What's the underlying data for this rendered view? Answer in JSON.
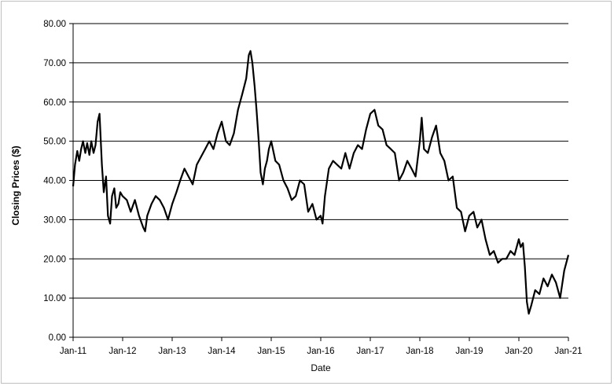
{
  "chart_data": {
    "type": "line",
    "title": "",
    "xlabel": "Date",
    "ylabel": "Closing Prices ($)",
    "ylim": [
      0,
      80
    ],
    "yticks": [
      "0.00",
      "10.00",
      "20.00",
      "30.00",
      "40.00",
      "50.00",
      "60.00",
      "70.00",
      "80.00"
    ],
    "xticks": [
      "Jan-11",
      "Jan-12",
      "Jan-13",
      "Jan-14",
      "Jan-15",
      "Jan-16",
      "Jan-17",
      "Jan-18",
      "Jan-19",
      "Jan-20",
      "Jan-21"
    ],
    "xlim": [
      "2011-01-01",
      "2021-01-01"
    ],
    "grid": true,
    "line_color": "#000000",
    "series": [
      {
        "x": [
          "2011-01-01",
          "2011-01-15",
          "2011-02-01",
          "2011-02-15",
          "2011-03-01",
          "2011-03-15",
          "2011-04-01",
          "2011-04-15",
          "2011-05-01",
          "2011-05-15",
          "2011-06-01",
          "2011-06-15",
          "2011-07-01",
          "2011-07-15",
          "2011-08-01",
          "2011-08-15",
          "2011-09-01",
          "2011-09-15",
          "2011-10-01",
          "2011-10-15",
          "2011-11-01",
          "2011-11-15",
          "2011-12-01",
          "2011-12-15",
          "2012-01-01",
          "2012-02-01",
          "2012-03-01",
          "2012-04-01",
          "2012-05-01",
          "2012-06-01",
          "2012-06-15",
          "2012-07-01",
          "2012-08-01",
          "2012-09-01",
          "2012-10-01",
          "2012-11-01",
          "2012-12-01",
          "2013-01-01",
          "2013-02-01",
          "2013-03-01",
          "2013-04-01",
          "2013-05-01",
          "2013-06-01",
          "2013-07-01",
          "2013-08-01",
          "2013-09-01",
          "2013-10-01",
          "2013-11-01",
          "2013-12-01",
          "2014-01-01",
          "2014-02-01",
          "2014-03-01",
          "2014-04-01",
          "2014-05-01",
          "2014-06-01",
          "2014-07-01",
          "2014-07-20",
          "2014-08-01",
          "2014-08-15",
          "2014-09-01",
          "2014-09-15",
          "2014-10-01",
          "2014-10-15",
          "2014-11-01",
          "2014-11-15",
          "2014-12-01",
          "2014-12-15",
          "2015-01-01",
          "2015-02-01",
          "2015-03-01",
          "2015-04-01",
          "2015-05-01",
          "2015-06-01",
          "2015-07-01",
          "2015-08-01",
          "2015-09-01",
          "2015-10-01",
          "2015-11-01",
          "2015-12-01",
          "2016-01-01",
          "2016-01-15",
          "2016-02-01",
          "2016-03-01",
          "2016-04-01",
          "2016-05-01",
          "2016-06-01",
          "2016-07-01",
          "2016-08-01",
          "2016-09-01",
          "2016-10-01",
          "2016-11-01",
          "2016-12-01",
          "2017-01-01",
          "2017-02-01",
          "2017-03-01",
          "2017-04-01",
          "2017-05-01",
          "2017-06-01",
          "2017-07-01",
          "2017-08-01",
          "2017-09-01",
          "2017-10-01",
          "2017-11-01",
          "2017-12-01",
          "2018-01-01",
          "2018-01-15",
          "2018-02-01",
          "2018-03-01",
          "2018-04-01",
          "2018-05-01",
          "2018-06-01",
          "2018-07-01",
          "2018-08-01",
          "2018-09-01",
          "2018-10-01",
          "2018-11-01",
          "2018-12-01",
          "2019-01-01",
          "2019-02-01",
          "2019-03-01",
          "2019-04-01",
          "2019-05-01",
          "2019-06-01",
          "2019-07-01",
          "2019-08-01",
          "2019-09-01",
          "2019-10-01",
          "2019-11-01",
          "2019-12-01",
          "2020-01-01",
          "2020-01-15",
          "2020-02-01",
          "2020-02-15",
          "2020-03-01",
          "2020-03-15",
          "2020-04-01",
          "2020-05-01",
          "2020-06-01",
          "2020-07-01",
          "2020-08-01",
          "2020-09-01",
          "2020-10-01",
          "2020-11-01",
          "2020-12-01",
          "2021-01-01"
        ],
        "y": [
          38.5,
          44,
          47.5,
          45,
          48,
          50,
          47,
          49.5,
          46.5,
          50,
          47,
          49,
          55,
          57,
          44,
          37,
          41,
          31,
          29,
          36,
          38,
          33,
          34,
          37,
          36,
          35,
          32,
          35,
          31,
          28,
          27,
          31,
          34,
          36,
          35,
          33,
          30,
          34,
          37,
          40,
          43,
          41,
          39,
          44,
          46,
          48,
          50,
          48,
          52,
          55,
          50,
          49,
          52,
          58,
          62,
          66,
          72,
          73,
          70,
          64,
          58,
          50,
          42,
          39,
          43,
          45,
          48,
          50,
          45,
          44,
          40,
          38,
          35,
          36,
          40,
          39,
          32,
          34,
          30,
          31,
          29,
          36,
          43,
          45,
          44,
          43,
          47,
          43,
          47,
          49,
          48,
          53,
          57,
          58,
          54,
          53,
          49,
          48,
          47,
          40,
          42,
          45,
          43,
          41,
          50,
          56,
          48,
          47,
          51,
          54,
          47,
          45,
          40,
          41,
          33,
          32,
          27,
          31,
          32,
          28,
          30,
          25,
          21,
          22,
          19,
          20,
          20,
          22,
          21,
          25,
          23,
          24,
          18,
          9,
          6,
          8,
          12,
          11,
          15,
          13,
          16,
          14,
          10,
          17,
          21
        ]
      }
    ]
  }
}
